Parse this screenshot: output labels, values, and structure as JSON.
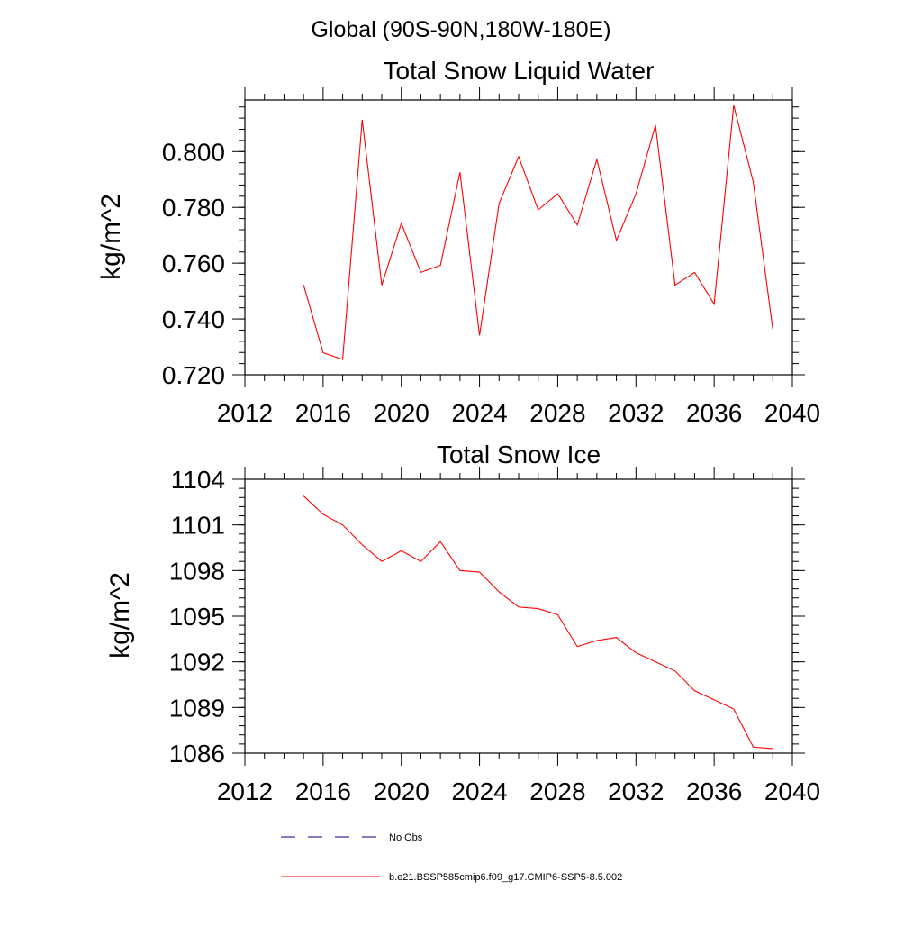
{
  "figure": {
    "title": "Global (90S-90N,180W-180E)"
  },
  "colors": {
    "series_line": "#ff0000",
    "obs_line": "#000080",
    "axis": "#000000"
  },
  "legend": {
    "items": [
      {
        "label": "No Obs",
        "style": "dashed",
        "color": "#000080"
      },
      {
        "label": "b.e21.BSSP585cmip6.f09_g17.CMIP6-SSP5-8.5.002",
        "style": "solid",
        "color": "#ff0000"
      }
    ]
  },
  "chart_data": [
    {
      "type": "line",
      "title": "Total Snow Liquid Water",
      "xlabel": "",
      "ylabel": "kg/m^2",
      "xlim": [
        2012,
        2040
      ],
      "ylim": [
        0.72,
        0.8185
      ],
      "xticks": [
        "2012",
        "2016",
        "2020",
        "2024",
        "2028",
        "2032",
        "2036",
        "2040"
      ],
      "yticks": [
        "0.720",
        "0.740",
        "0.760",
        "0.780",
        "0.800"
      ],
      "ytick_values": [
        0.72,
        0.74,
        0.76,
        0.78,
        0.8
      ],
      "y_minor_step": 0.004,
      "grid": false,
      "series": [
        {
          "name": "b.e21.BSSP585cmip6.f09_g17.CMIP6-SSP5-8.5.002",
          "color": "#ff0000",
          "x": [
            2015,
            2016,
            2017,
            2018,
            2019,
            2020,
            2021,
            2022,
            2023,
            2024,
            2025,
            2026,
            2027,
            2028,
            2029,
            2030,
            2031,
            2032,
            2033,
            2034,
            2035,
            2036,
            2037,
            2038,
            2039
          ],
          "values": [
            0.7522,
            0.7279,
            0.7255,
            0.8114,
            0.7521,
            0.7743,
            0.7567,
            0.7592,
            0.7926,
            0.7341,
            0.7814,
            0.7982,
            0.7791,
            0.7849,
            0.7737,
            0.7972,
            0.7682,
            0.7848,
            0.8095,
            0.7521,
            0.7567,
            0.7453,
            0.8166,
            0.7891,
            0.7363
          ]
        }
      ]
    },
    {
      "type": "line",
      "title": "Total Snow Ice",
      "xlabel": "",
      "ylabel": "kg/m^2",
      "xlim": [
        2012,
        2040
      ],
      "ylim": [
        1086,
        1104
      ],
      "xticks": [
        "2012",
        "2016",
        "2020",
        "2024",
        "2028",
        "2032",
        "2036",
        "2040"
      ],
      "yticks": [
        "1086",
        "1089",
        "1092",
        "1095",
        "1098",
        "1101",
        "1104"
      ],
      "ytick_values": [
        1086,
        1089,
        1092,
        1095,
        1098,
        1101,
        1104
      ],
      "y_minor_step": 0.6,
      "grid": false,
      "series": [
        {
          "name": "b.e21.BSSP585cmip6.f09_g17.CMIP6-SSP5-8.5.002",
          "color": "#ff0000",
          "x": [
            2015,
            2016,
            2017,
            2018,
            2019,
            2020,
            2021,
            2022,
            2023,
            2024,
            2025,
            2026,
            2027,
            2028,
            2029,
            2030,
            2031,
            2032,
            2033,
            2034,
            2035,
            2036,
            2037,
            2038,
            2039
          ],
          "values": [
            1102.9,
            1101.7,
            1101.0,
            1099.7,
            1098.6,
            1099.3,
            1098.6,
            1099.9,
            1098.0,
            1097.9,
            1096.6,
            1095.6,
            1095.5,
            1095.1,
            1093.0,
            1093.4,
            1093.6,
            1092.6,
            1092.0,
            1091.4,
            1090.1,
            1089.5,
            1088.9,
            1086.4,
            1086.3
          ]
        }
      ]
    }
  ]
}
